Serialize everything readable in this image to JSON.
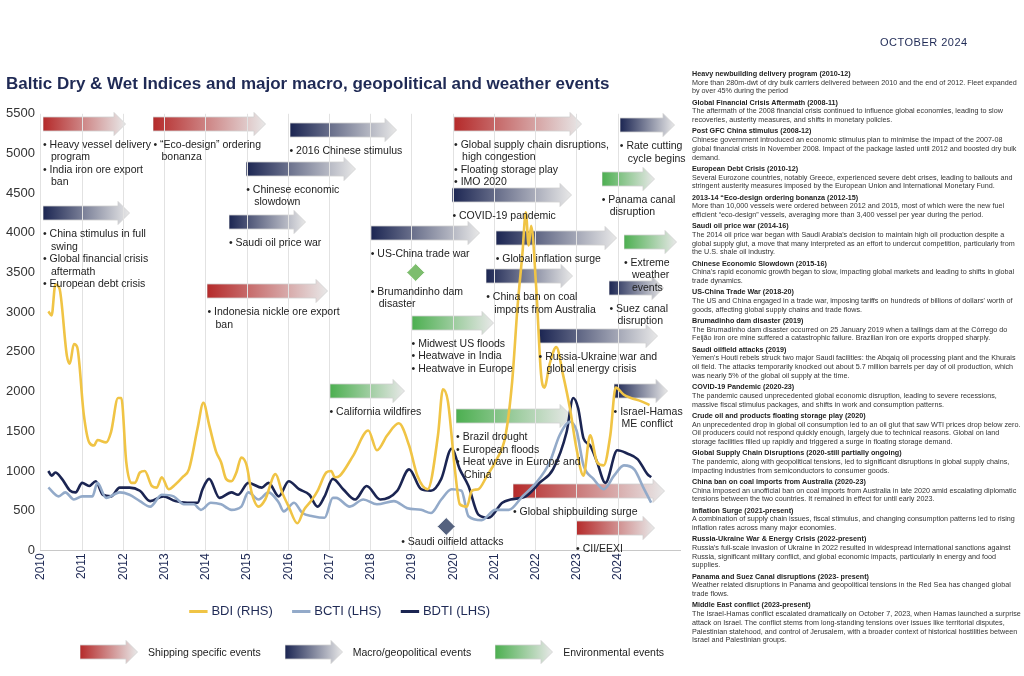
{
  "chart_data": {
    "type": "line",
    "title": "Baltic Dry & Wet Indices and major macro, geopolitical and weather events",
    "subtitle": "OCTOBER 2024",
    "xlim": [
      2010,
      2025.5
    ],
    "xticks": [
      2010,
      2011,
      2012,
      2013,
      2014,
      2015,
      2016,
      2017,
      2018,
      2019,
      2020,
      2021,
      2022,
      2023,
      2024
    ],
    "ylim": [
      0,
      5500
    ],
    "yticks": [
      0,
      500,
      1000,
      1500,
      2000,
      2500,
      3000,
      3500,
      4000,
      4500,
      5000,
      5500
    ],
    "grid": "x",
    "legend": "bottom",
    "marker": "none",
    "series": [
      {
        "name": "BDI (RHS)",
        "color": "#f0c445",
        "x": [
          2010.18,
          2010.26,
          2010.35,
          2010.45,
          2010.63,
          2010.7,
          2010.8,
          2010.88,
          2011.04,
          2011.17,
          2011.29,
          2011.37,
          2011.58,
          2011.7,
          2011.87,
          2011.95,
          2012.07,
          2012.19,
          2012.28,
          2012.4,
          2012.52,
          2012.69,
          2012.81,
          2012.93,
          2013.1,
          2013.26,
          2013.43,
          2013.59,
          2013.8,
          2013.94,
          2014.08,
          2014.25,
          2014.37,
          2014.49,
          2014.62,
          2014.74,
          2014.86,
          2014.99,
          2015.11,
          2015.28,
          2015.44,
          2015.69,
          2015.85,
          2016.01,
          2016.22,
          2016.38,
          2016.55,
          2016.71,
          2016.92,
          2017.04,
          2017.13,
          2017.25,
          2017.57,
          2017.94,
          2018.15,
          2018.4,
          2018.68,
          2018.93,
          2019.13,
          2019.38,
          2019.63,
          2019.75,
          2019.87,
          2020.04,
          2020.16,
          2020.33,
          2020.45,
          2020.61,
          2020.82,
          2021.06,
          2021.27,
          2021.43,
          2021.56,
          2021.68,
          2021.76,
          2021.83,
          2021.89,
          2022.01,
          2022.13,
          2022.21,
          2022.34,
          2022.5,
          2022.66,
          2022.83,
          2022.99,
          2023.16,
          2023.32,
          2023.49,
          2023.65,
          2023.81,
          2023.94,
          2024.14,
          2024.31,
          2024.55,
          2024.76
        ],
        "values": [
          3010,
          2960,
          3350,
          3300,
          2450,
          2350,
          2600,
          2560,
          1710,
          1360,
          1320,
          1390,
          1360,
          1490,
          1920,
          1920,
          1110,
          850,
          850,
          980,
          1000,
          810,
          790,
          920,
          770,
          830,
          920,
          1020,
          1540,
          1860,
          1580,
          1240,
          1110,
          900,
          870,
          980,
          1170,
          1070,
          730,
          550,
          640,
          960,
          730,
          550,
          340,
          510,
          620,
          750,
          980,
          1000,
          920,
          940,
          1190,
          1510,
          1260,
          1450,
          1600,
          1320,
          940,
          770,
          1450,
          2030,
          1880,
          1020,
          580,
          550,
          750,
          770,
          940,
          1150,
          1450,
          2130,
          3070,
          3750,
          4260,
          3840,
          4090,
          3330,
          2220,
          2050,
          2350,
          2560,
          2220,
          1790,
          1280,
          940,
          1450,
          1110,
          1070,
          1450,
          2050,
          1960,
          1920,
          1880,
          1830
        ]
      },
      {
        "name": "BCTI (LHS)",
        "color": "#93aac9",
        "x": [
          2010.18,
          2010.43,
          2010.59,
          2010.8,
          2011,
          2011.25,
          2011.37,
          2011.58,
          2011.91,
          2012.15,
          2012.4,
          2012.65,
          2012.93,
          2013.22,
          2013.47,
          2013.71,
          2013.88,
          2014.12,
          2014.37,
          2014.62,
          2014.86,
          2015.03,
          2015.28,
          2015.52,
          2015.77,
          2015.89,
          2016.14,
          2016.34,
          2016.59,
          2016.88,
          2017.08,
          2017.16,
          2017.49,
          2017.82,
          2018.15,
          2018.56,
          2018.89,
          2019.22,
          2019.46,
          2019.71,
          2019.96,
          2020.2,
          2020.37,
          2020.69,
          2021.02,
          2021.35,
          2021.68,
          2022.01,
          2022.34,
          2022.58,
          2022.83,
          2022.99,
          2023.16,
          2023.4,
          2023.65,
          2023.9,
          2024.14,
          2024.39,
          2024.63,
          2024.8
        ],
        "values": [
          790,
          680,
          730,
          640,
          680,
          680,
          850,
          660,
          730,
          700,
          620,
          550,
          700,
          680,
          580,
          580,
          510,
          600,
          580,
          510,
          550,
          730,
          640,
          730,
          600,
          490,
          600,
          470,
          430,
          410,
          660,
          660,
          550,
          640,
          580,
          620,
          530,
          510,
          470,
          640,
          770,
          750,
          430,
          380,
          510,
          510,
          680,
          850,
          1110,
          1450,
          1620,
          1510,
          1070,
          900,
          770,
          940,
          1070,
          1020,
          770,
          600
        ]
      },
      {
        "name": "BDTI (LHS)",
        "color": "#1b2552",
        "x": [
          2010.18,
          2010.26,
          2010.35,
          2010.51,
          2010.71,
          2010.84,
          2011,
          2011.17,
          2011.33,
          2011.5,
          2011.7,
          2011.91,
          2012.15,
          2012.4,
          2012.65,
          2012.97,
          2013.26,
          2013.55,
          2013.8,
          2013.92,
          2014.08,
          2014.33,
          2014.62,
          2014.78,
          2015.03,
          2015.36,
          2015.52,
          2015.77,
          2016.01,
          2016.26,
          2016.51,
          2016.71,
          2016.88,
          2017.08,
          2017.33,
          2017.62,
          2017.9,
          2018.23,
          2018.64,
          2018.93,
          2019.22,
          2019.46,
          2019.71,
          2019.96,
          2020.16,
          2020.37,
          2020.61,
          2020.86,
          2021.19,
          2021.39,
          2021.76,
          2022.09,
          2022.42,
          2022.75,
          2022.91,
          2023.03,
          2023.16,
          2023.32,
          2023.49,
          2023.69,
          2023.98,
          2024.22,
          2024.47,
          2024.71,
          2024.8
        ],
        "values": [
          1000,
          940,
          980,
          900,
          750,
          730,
          850,
          810,
          870,
          700,
          680,
          790,
          790,
          750,
          620,
          680,
          620,
          600,
          600,
          770,
          900,
          660,
          730,
          700,
          850,
          790,
          850,
          680,
          870,
          770,
          700,
          550,
          680,
          900,
          770,
          640,
          810,
          640,
          750,
          1020,
          770,
          750,
          900,
          1280,
          1020,
          810,
          450,
          410,
          600,
          640,
          680,
          850,
          1020,
          1490,
          1920,
          1790,
          1410,
          1320,
          1110,
          850,
          1260,
          1220,
          1150,
          960,
          920
        ]
      },
      {
        "type": "scatter",
        "marker": "diamond",
        "color": "#7dbd6e",
        "x": [
          2019.09
        ],
        "values": [
          3500
        ]
      },
      {
        "type": "scatter",
        "marker": "diamond",
        "color": "#55627f",
        "x": [
          2019.83
        ],
        "values": [
          300
        ]
      }
    ],
    "annotations": [
      "• Heavy vessel delivery program\n• India iron ore export ban",
      "• “Eco-design” ordering bonanza",
      "• 2016 Chinese stimulus",
      "• Chinese economic slowdown",
      "• China stimulus in full swing\n• Global financial crisis aftermath\n• European debt crisis",
      "• Saudi oil price war",
      "• Indonesia nickle ore export ban",
      "• California wildfires",
      "• US-China trade war",
      "• Midwest US floods\n• Heatwave in India\n• Heatwave in Europe",
      "• Global supply chain disruptions, high congestion\n• Floating storage play\n• IMO 2020",
      "• COVID-19 pandemic",
      "• Global inflation surge",
      "• China ban on coal imports from Australia",
      "• Brazil drought\n• European floods\n• Heat wave in Europe and China",
      "• Russia-Ukraine war and global energy crisis",
      "• Global shipbuilding surge",
      "• CII/EEXI",
      "• Rate cutting cycle begins",
      "• Panama canal disruption",
      "• Extreme weather events",
      "• Suez canal disruption",
      "• Israel-Hamas ME conflict",
      {
        "text": "• Brumandinho dam disaster",
        "x": 2019.09,
        "y": 3500
      },
      {
        "text": "• Saudi oilfield attacks",
        "x": 2019.83,
        "y": 300
      },
      "Shipping specific events",
      "Macro/geopolitical events",
      "Environmental events",
      "Heavy newbuilding delivery program (2010-12)\nMore than 280m-dwt of dry bulk carriers delivered between 2010 and the end of 2012. Fleet expanded by over 45% during the period",
      "Global Financial Crisis Aftermath (2008-11)\nThe aftermath of the 2008 financial crisis continued to influence global economies, leading to slow recoveries, austerity measures, and shifts in monetary policies.",
      "Post GFC China stimulus (2008-12)\nChinese government introduced an economic stimulus plan to minimise the impact of the 2007-08 global financial crisis in November 2008. Impact of the package lasted until 2012 and boosted dry bulk demand.",
      "European Debt Crisis (2010-12)\nSeveral Eurozone countries, notably Greece, experienced severe debt crises, leading to bailouts and stringent austerity measures imposed by the European Union and International Monetary Fund.",
      "2013-14 “Eco-design ordering bonanza (2012-15)\nMore than 10,000 vessels were ordered between 2012 and 2015, most of which were the new fuel efficient “eco-design” vessels, averaging more than 3,400 vessel per year during the period.",
      "Saudi oil price war (2014-16)\nThe 2014 oil price war began with Saudi Arabia's decision to maintain high oil production despite a global supply glut, a move that many interpreted as an effort to undercut competition, particularly from the U.S. shale oil industry.",
      "Chinese Economic Slowdown (2015-16)\nChina's rapid economic growth began to slow, impacting global markets and leading to shifts in global trade dynamics.",
      "US-China Trade War (2018-20)\nThe US and China engaged in a trade war, imposing tariffs on hundreds of billions of dollars' worth of goods, affecting global supply chains and trade flows.",
      "Brumadinho dam disaster (2019)\nThe Brumadinho dam disaster occurred on 25 January 2019 when a tailings dam at the Córrego do Feijão iron ore mine suffered a catastrophic failure. Brazilian iron ore exports dropped sharply.",
      "Saudi oilfield attacks (2019)\nYemen's Houti rebels struck two major Saudi facilities: the Abqaiq oil processing plant and the Khurais oil field. The attacks temporarily knocked out about 5.7 million barrels per day of oil production, which was nearly 5% of the global oil supply at the time.",
      "COVID-19 Pandemic (2020-23)\nThe pandemic caused unprecedented global economic disruption, leading to severe recessions, massive fiscal stimulus packages, and shifts in work and consumption patterns.",
      "Crude oil and products floating storage play (2020)\nAn unprecedented drop in global oil consumption led to an oil glut that saw WTI prices drop below zero. Oil producers could not respond quickly enough, largely due to technical reasons. Global on land storage facilities filled up rapidly and triggered a surge in floating storage demand.",
      "Global Supply Chain Disruptions (2020-still partially ongoing)\nThe pandemic, along with geopolitical tensions, led to significant disruptions in global supply chains, impacting industries from semiconductors to consumer goods.",
      "China ban on coal imports from Australia (2020-23)\nChina imposed an unofficial ban on coal imports from Australia in late 2020 amid escalating diplomatic tensions between the two countries. It remained in effect for until early 2023.",
      "Inflation Surge (2021-present)\nA combination of supply chain issues, fiscal stimulus, and changing consumption patterns led to rising inflation rates across many major economies.",
      "Russia-Ukraine War & Energy Crisis (2022-present)\nRussia's full-scale invasion of Ukraine in 2022 resulted in widespread international sanctions against Russia, significant military conflict, and global economic impacts, particularly in energy and food supplies.",
      "Panama and Suez Canal disruptions (2023- present)\nWeather related disruptions in Panama and geopolitical tensions in the Red Sea has changed global trade flows.",
      "Middle East conflict (2023-present)\nThe Israel-Hamas conflict escalated dramatically on October 7, 2023, when Hamas launched a surprise attack on Israel. The conflict stems from long-standing tensions over issues like territorial disputes, Palestinian statehood, and control of Jerusalem, with a broader context of historical hostilities between Israel and Palestinian groups."
    ]
  }
}
